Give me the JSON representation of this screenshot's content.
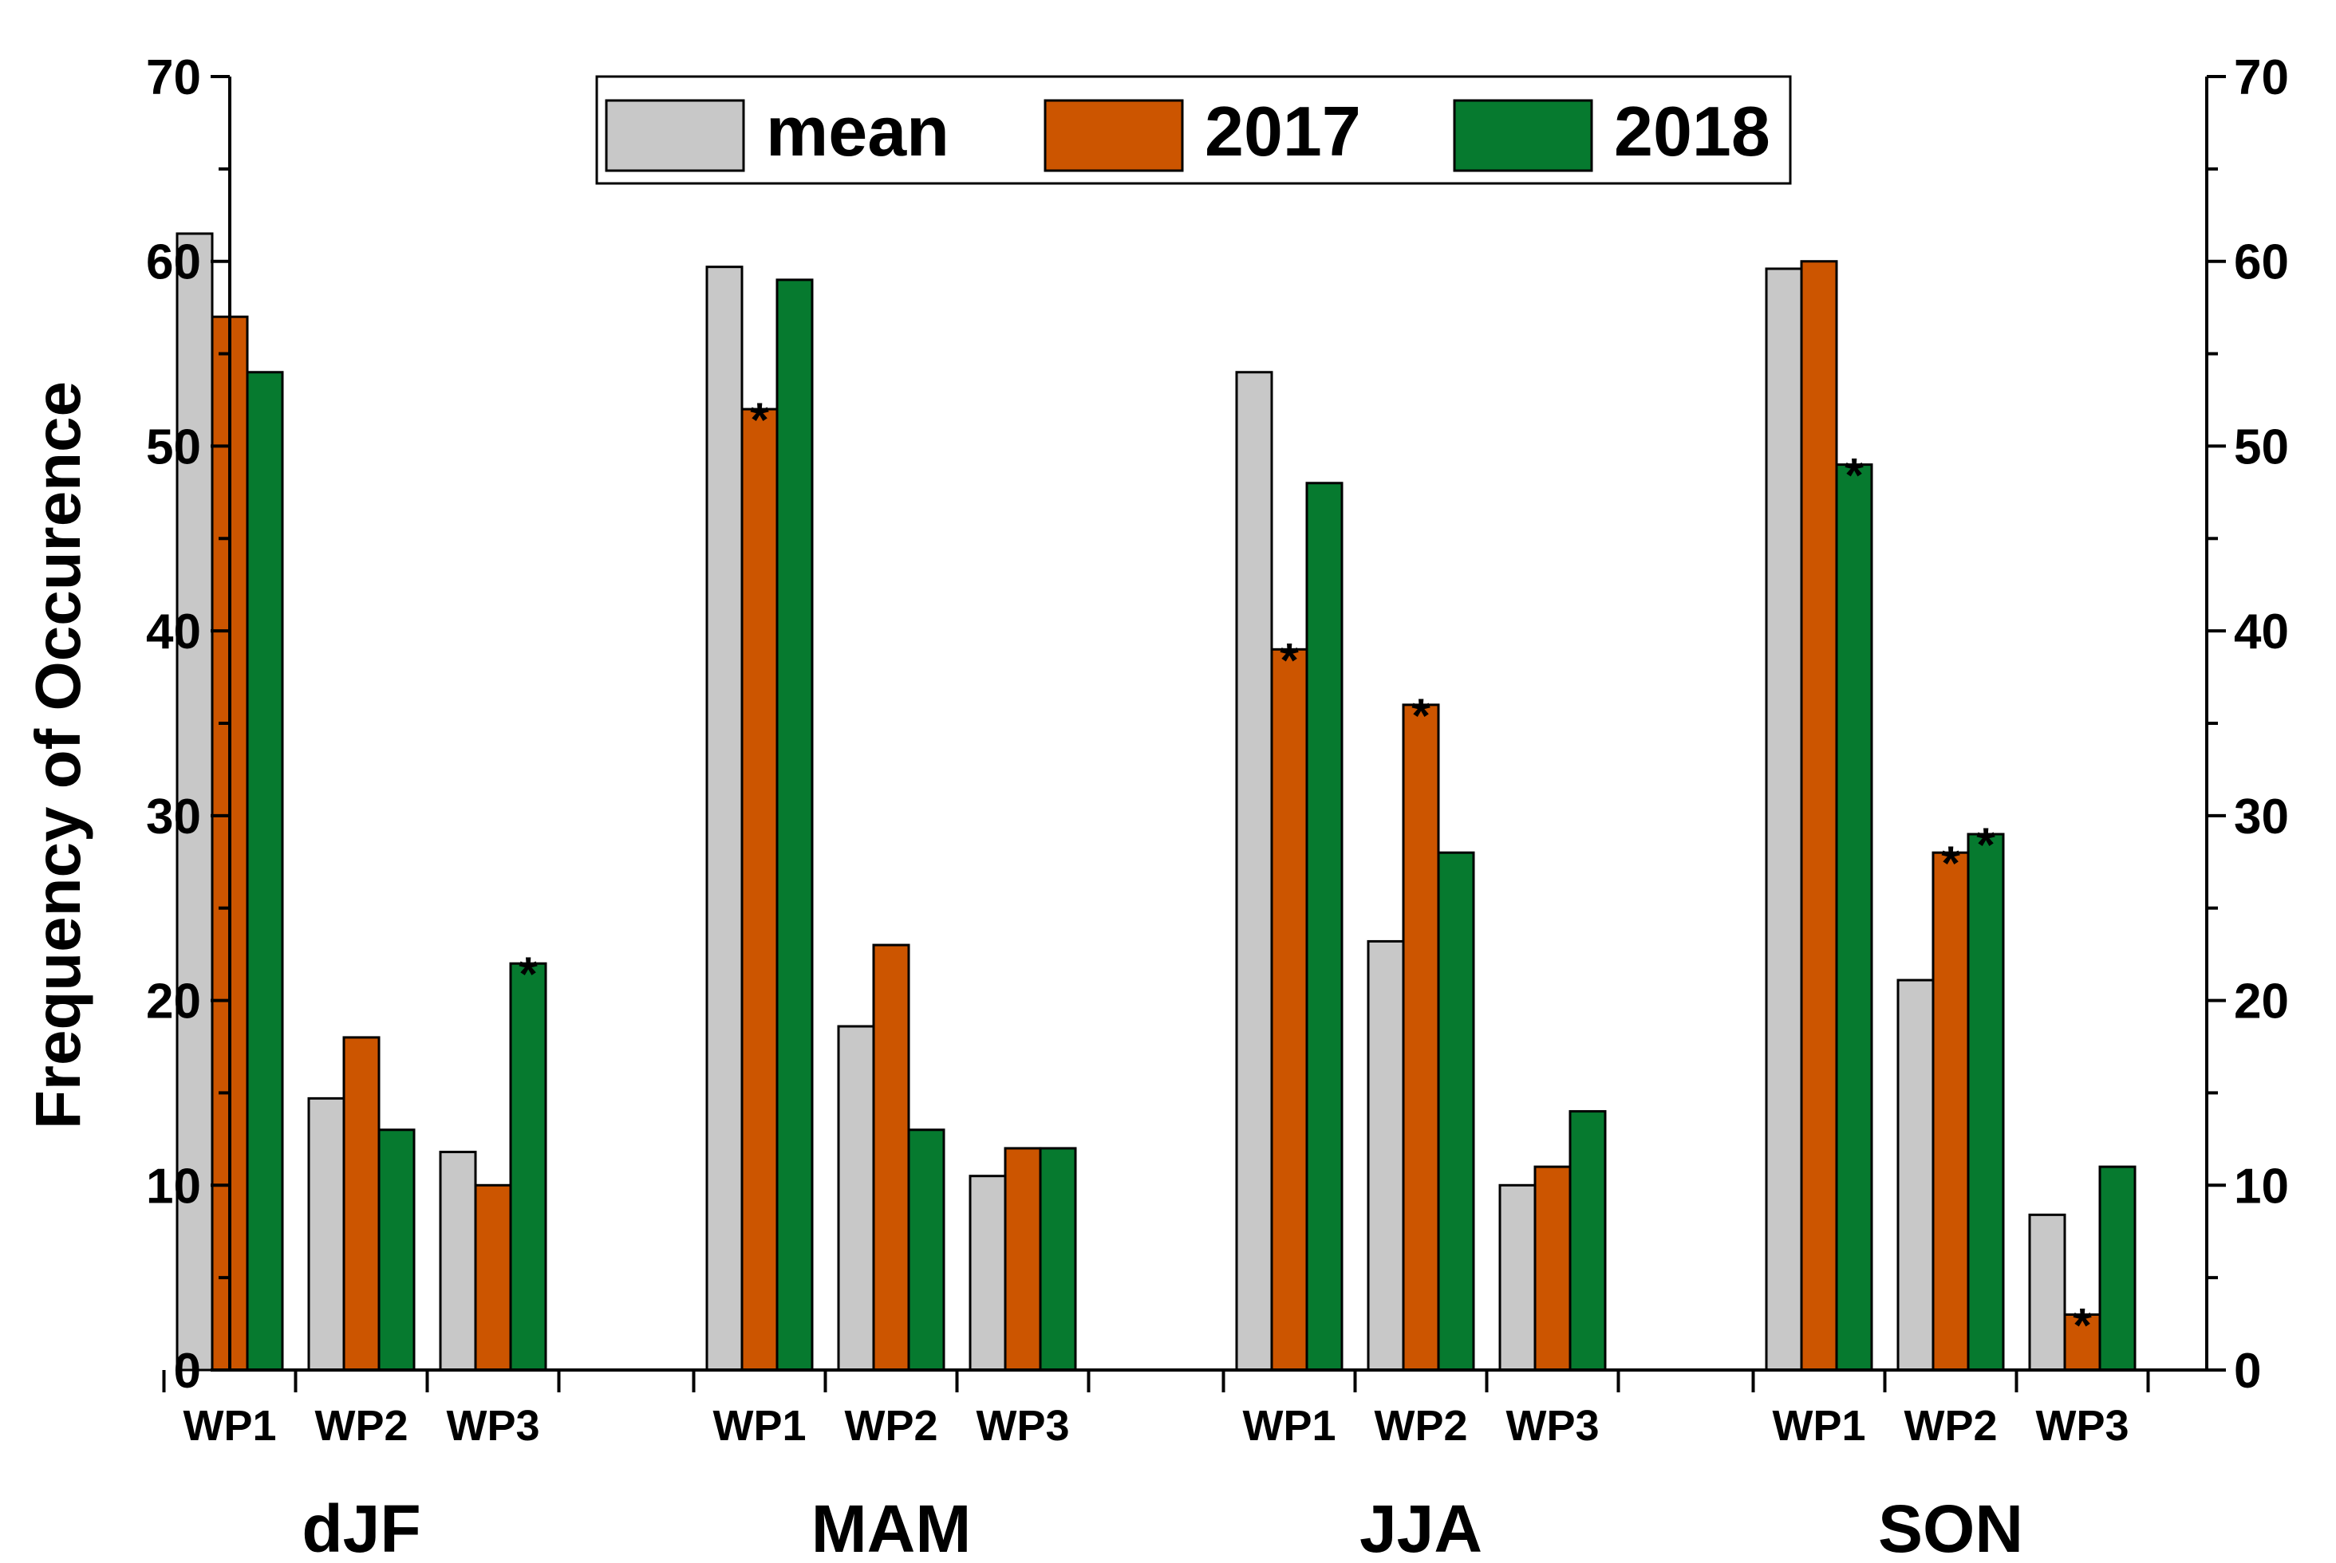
{
  "chart_data": {
    "type": "bar",
    "ylabel": "Frequency of Occurence",
    "ylim": [
      0,
      70
    ],
    "yticks": [
      "0",
      "10",
      "20",
      "30",
      "40",
      "50",
      "60",
      "70"
    ],
    "groups": [
      {
        "label": "dJF",
        "categories": [
          "WP1",
          "WP2",
          "WP3"
        ]
      },
      {
        "label": "MAM",
        "categories": [
          "WP1",
          "WP2",
          "WP3"
        ]
      },
      {
        "label": "JJA",
        "categories": [
          "WP1",
          "WP2",
          "WP3"
        ]
      },
      {
        "label": "SON",
        "categories": [
          "WP1",
          "WP2",
          "WP3"
        ]
      }
    ],
    "series": [
      {
        "name": "mean",
        "color": "#c8c8c8",
        "values": [
          61.5,
          14.7,
          11.8,
          59.7,
          18.6,
          10.5,
          54.0,
          23.2,
          10.0,
          59.6,
          21.1,
          8.4
        ]
      },
      {
        "name": "2017",
        "color": "#cc5500",
        "values": [
          57,
          18,
          10,
          52,
          23,
          12,
          39,
          36,
          11,
          60,
          28,
          3
        ]
      },
      {
        "name": "2018",
        "color": "#067a2f",
        "values": [
          54,
          13,
          22,
          59,
          13,
          12,
          48,
          28,
          14,
          49,
          29,
          11
        ]
      }
    ],
    "significance_marker": "*",
    "significant": [
      {
        "series": 2,
        "index": 2
      },
      {
        "series": 1,
        "index": 3
      },
      {
        "series": 1,
        "index": 6
      },
      {
        "series": 1,
        "index": 7
      },
      {
        "series": 2,
        "index": 9
      },
      {
        "series": 1,
        "index": 10
      },
      {
        "series": 2,
        "index": 10
      },
      {
        "series": 1,
        "index": 11
      }
    ],
    "legend_position": "top-center",
    "grid": false
  }
}
